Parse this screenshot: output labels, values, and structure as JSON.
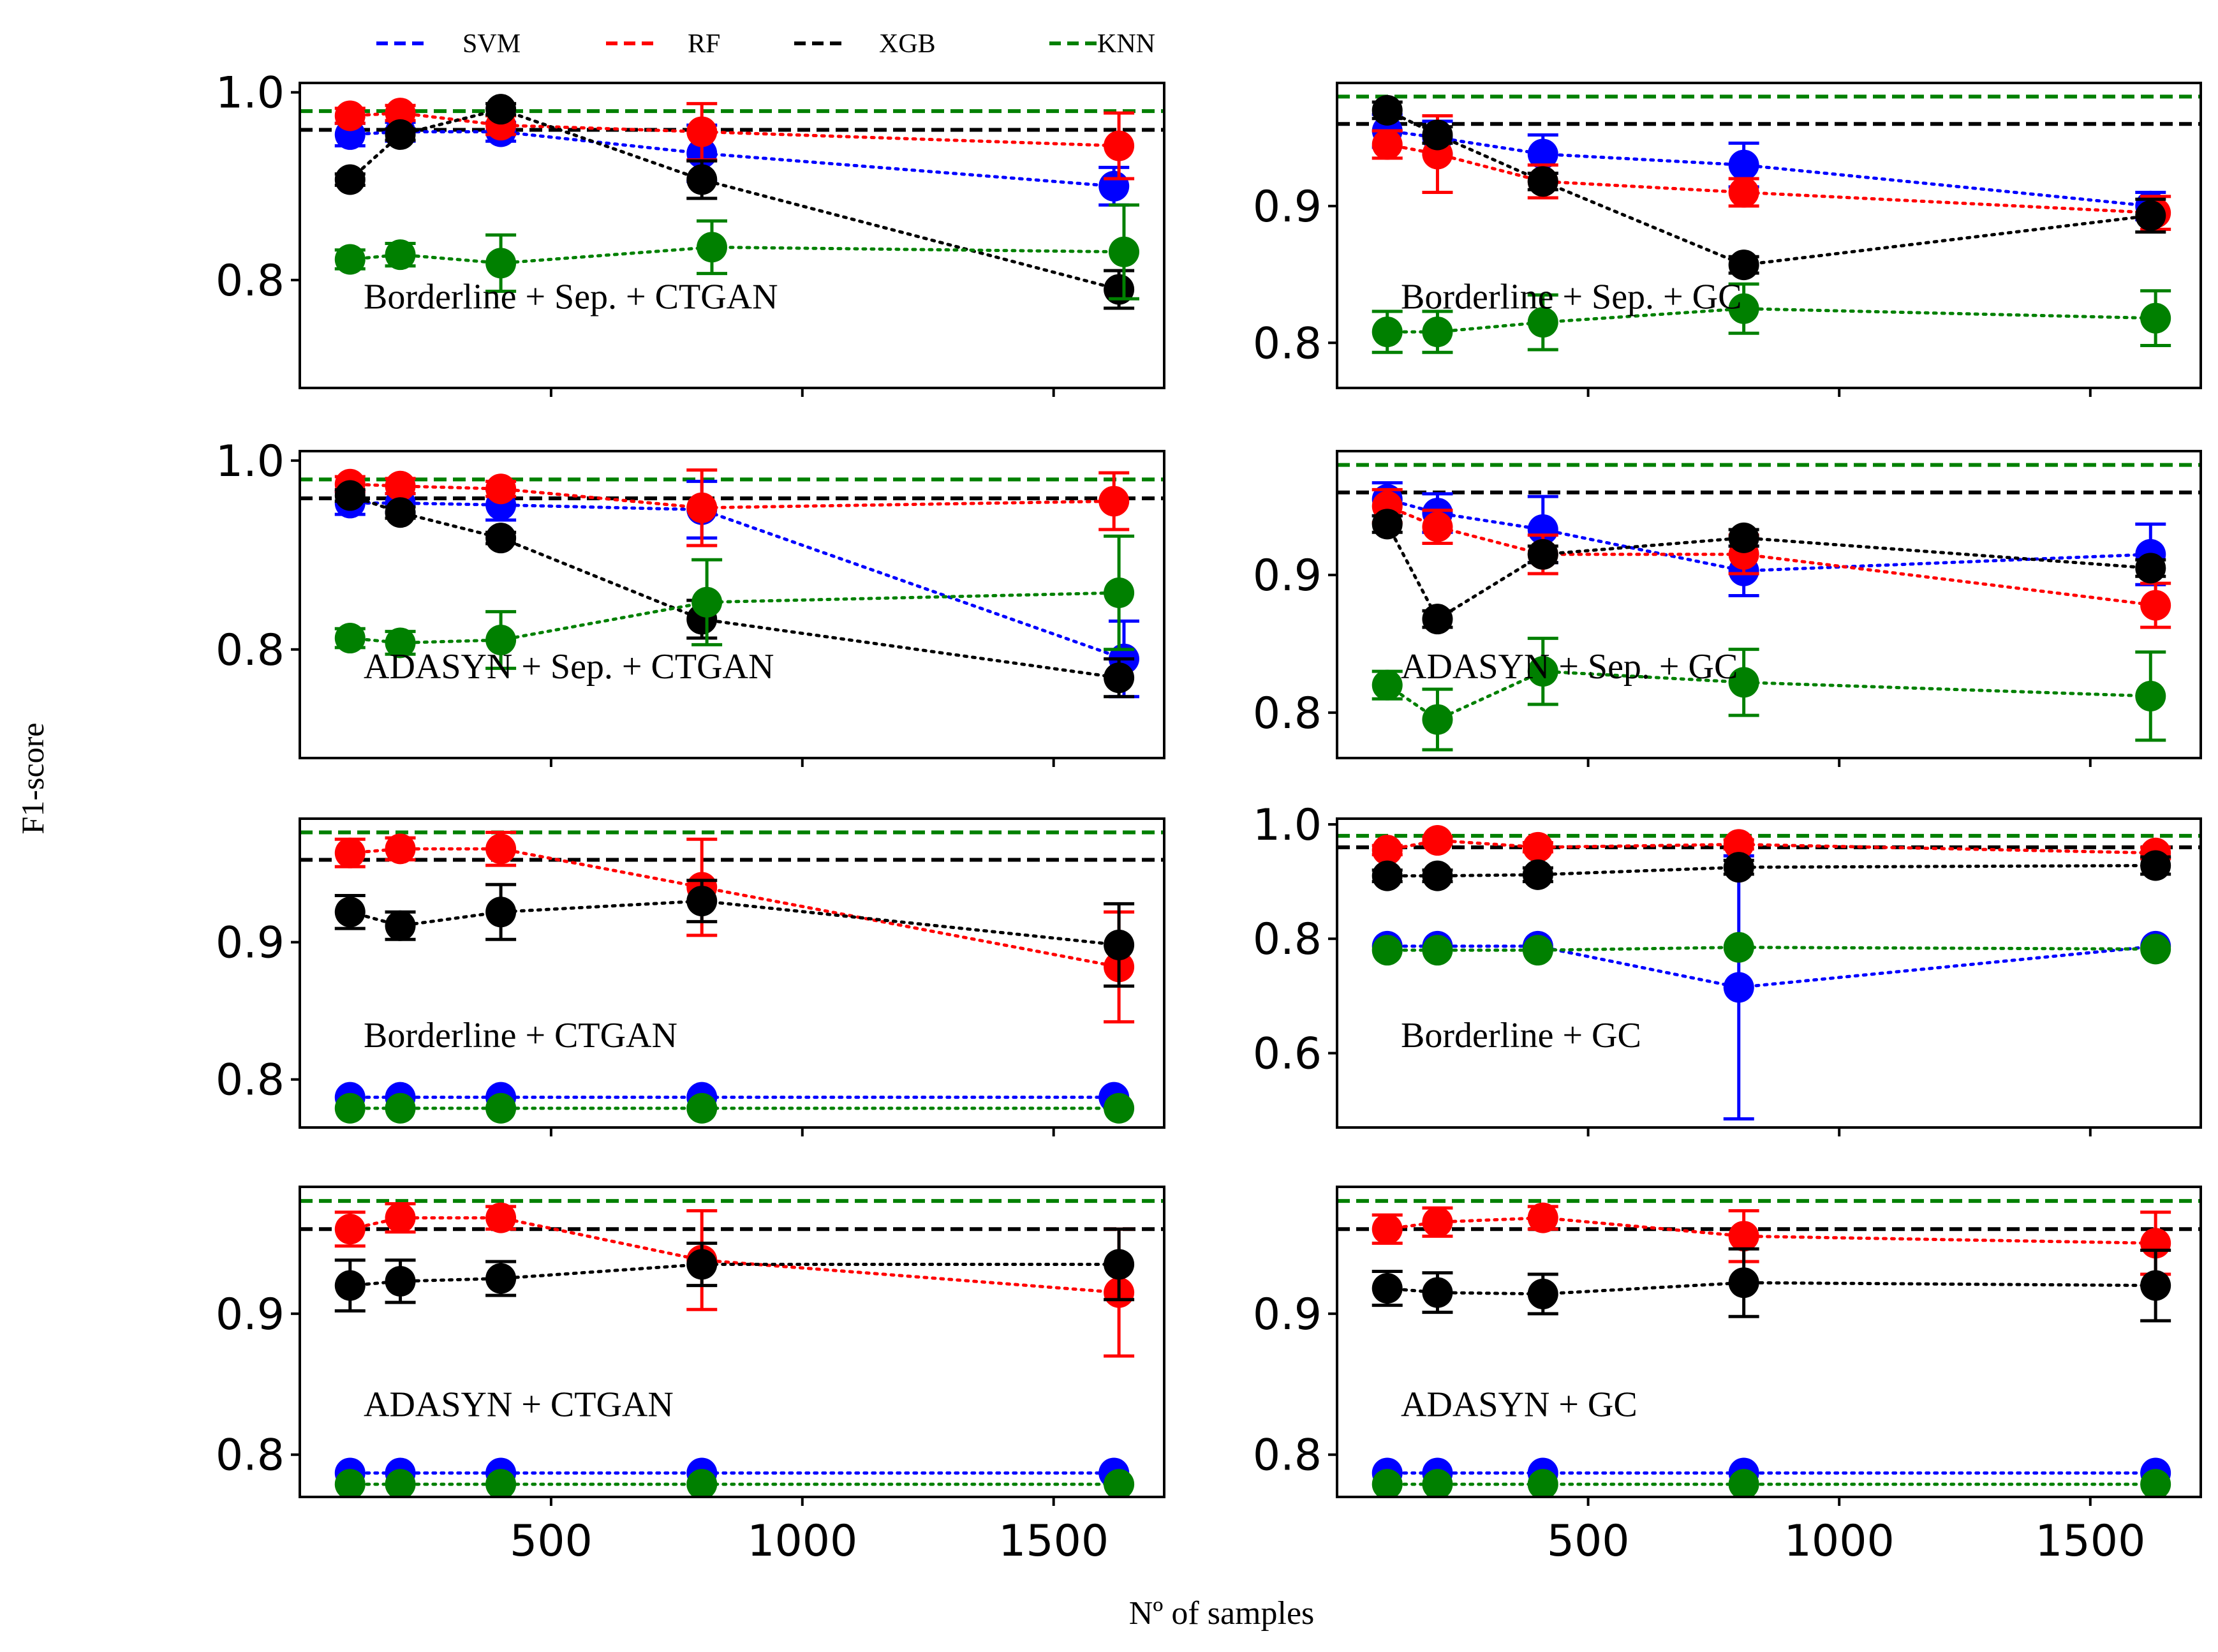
{
  "figure": {
    "ylabel": "F1-score",
    "xlabel": "Nº of samples",
    "legend": {
      "placement": "top",
      "entries": [
        {
          "name": "SVM",
          "color": "#0000ff"
        },
        {
          "name": "RF",
          "color": "#ff0000"
        },
        {
          "name": "XGB",
          "color": "#000000"
        },
        {
          "name": "KNN",
          "color": "#008000"
        }
      ]
    },
    "reference_lines_note": "dashed horizontal lines = baseline F1 per model"
  },
  "chart_data": [
    {
      "type": "scatter",
      "title": "Borderline + Sep. + CTGAN",
      "xlim": [
        0,
        1720
      ],
      "ylim": [
        0.685,
        1.01
      ],
      "yticks": [
        "0.8",
        "1.0"
      ],
      "ytick_values": [
        0.8,
        1.0
      ],
      "xticks": [
        "500",
        "1000",
        "1500"
      ],
      "xtick_values": [
        500,
        1000,
        1500
      ],
      "show_xticklabels": false,
      "baselines": {
        "SVM": 0.96,
        "RF": 0.96,
        "XGB": 0.96,
        "KNN": 0.98
      },
      "series": [
        {
          "name": "SVM",
          "x": [
            100,
            200,
            400,
            800,
            1620
          ],
          "y": [
            0.955,
            0.958,
            0.958,
            0.935,
            0.9
          ],
          "err": [
            0.012,
            0.01,
            0.01,
            0.03,
            0.02
          ]
        },
        {
          "name": "RF",
          "x": [
            100,
            200,
            400,
            800,
            1630
          ],
          "y": [
            0.975,
            0.978,
            0.965,
            0.958,
            0.943
          ],
          "err": [
            0.008,
            0.008,
            0.01,
            0.03,
            0.035
          ]
        },
        {
          "name": "XGB",
          "x": [
            100,
            200,
            400,
            800,
            1630
          ],
          "y": [
            0.907,
            0.955,
            0.982,
            0.907,
            0.79
          ],
          "err": [
            0.006,
            0.006,
            0.006,
            0.02,
            0.02
          ]
        },
        {
          "name": "KNN",
          "x": [
            100,
            200,
            400,
            820,
            1640
          ],
          "y": [
            0.822,
            0.827,
            0.818,
            0.835,
            0.83
          ],
          "err": [
            0.01,
            0.012,
            0.03,
            0.028,
            0.05
          ]
        }
      ]
    },
    {
      "type": "scatter",
      "title": "Borderline + Sep. + GC",
      "xlim": [
        0,
        1720
      ],
      "ylim": [
        0.767,
        0.99
      ],
      "yticks": [
        "0.8",
        "0.9"
      ],
      "ytick_values": [
        0.8,
        0.9
      ],
      "xticks": [
        "500",
        "1000",
        "1500"
      ],
      "xtick_values": [
        500,
        1000,
        1500
      ],
      "show_xticklabels": false,
      "baselines": {
        "SVM": 0.96,
        "RF": 0.96,
        "XGB": 0.96,
        "KNN": 0.98
      },
      "series": [
        {
          "name": "SVM",
          "x": [
            100,
            200,
            410,
            810,
            1620
          ],
          "y": [
            0.955,
            0.95,
            0.938,
            0.93,
            0.9
          ],
          "err": [
            0.012,
            0.012,
            0.014,
            0.016,
            0.01
          ]
        },
        {
          "name": "RF",
          "x": [
            100,
            200,
            410,
            810,
            1630
          ],
          "y": [
            0.945,
            0.938,
            0.918,
            0.91,
            0.895
          ],
          "err": [
            0.01,
            0.028,
            0.012,
            0.01,
            0.012
          ]
        },
        {
          "name": "XGB",
          "x": [
            100,
            200,
            410,
            810,
            1620
          ],
          "y": [
            0.97,
            0.952,
            0.918,
            0.857,
            0.893
          ],
          "err": [
            0.006,
            0.006,
            0.006,
            0.006,
            0.012
          ]
        },
        {
          "name": "KNN",
          "x": [
            100,
            200,
            410,
            810,
            1630
          ],
          "y": [
            0.808,
            0.808,
            0.815,
            0.825,
            0.818
          ],
          "err": [
            0.015,
            0.015,
            0.02,
            0.018,
            0.02
          ]
        }
      ]
    },
    {
      "type": "scatter",
      "title": "ADASYN + Sep. + CTGAN",
      "xlim": [
        0,
        1720
      ],
      "ylim": [
        0.685,
        1.01
      ],
      "yticks": [
        "0.8",
        "1.0"
      ],
      "ytick_values": [
        0.8,
        1.0
      ],
      "xticks": [
        "500",
        "1000",
        "1500"
      ],
      "xtick_values": [
        500,
        1000,
        1500
      ],
      "show_xticklabels": false,
      "baselines": {
        "SVM": 0.96,
        "RF": 0.96,
        "XGB": 0.96,
        "KNN": 0.98
      },
      "series": [
        {
          "name": "SVM",
          "x": [
            100,
            200,
            400,
            800,
            1640
          ],
          "y": [
            0.955,
            0.955,
            0.953,
            0.948,
            0.79
          ],
          "err": [
            0.012,
            0.01,
            0.016,
            0.03,
            0.04
          ]
        },
        {
          "name": "RF",
          "x": [
            100,
            200,
            400,
            800,
            1620
          ],
          "y": [
            0.975,
            0.973,
            0.97,
            0.95,
            0.957
          ],
          "err": [
            0.008,
            0.008,
            0.008,
            0.04,
            0.03
          ]
        },
        {
          "name": "XGB",
          "x": [
            100,
            200,
            400,
            800,
            1630
          ],
          "y": [
            0.963,
            0.945,
            0.918,
            0.832,
            0.77
          ],
          "err": [
            0.006,
            0.006,
            0.006,
            0.02,
            0.02
          ]
        },
        {
          "name": "KNN",
          "x": [
            100,
            200,
            400,
            810,
            1630
          ],
          "y": [
            0.812,
            0.807,
            0.81,
            0.85,
            0.86
          ],
          "err": [
            0.01,
            0.012,
            0.03,
            0.045,
            0.06
          ]
        }
      ]
    },
    {
      "type": "scatter",
      "title": "ADASYN + Sep. + GC",
      "xlim": [
        0,
        1720
      ],
      "ylim": [
        0.767,
        0.99
      ],
      "yticks": [
        "0.8",
        "0.9"
      ],
      "ytick_values": [
        0.8,
        0.9
      ],
      "xticks": [
        "500",
        "1000",
        "1500"
      ],
      "xtick_values": [
        500,
        1000,
        1500
      ],
      "show_xticklabels": false,
      "baselines": {
        "SVM": 0.96,
        "RF": 0.96,
        "XGB": 0.96,
        "KNN": 0.98
      },
      "series": [
        {
          "name": "SVM",
          "x": [
            100,
            200,
            410,
            810,
            1620
          ],
          "y": [
            0.955,
            0.945,
            0.933,
            0.903,
            0.915
          ],
          "err": [
            0.012,
            0.014,
            0.024,
            0.018,
            0.022
          ]
        },
        {
          "name": "RF",
          "x": [
            100,
            200,
            410,
            810,
            1630
          ],
          "y": [
            0.95,
            0.935,
            0.915,
            0.915,
            0.878
          ],
          "err": [
            0.012,
            0.012,
            0.014,
            0.014,
            0.016
          ]
        },
        {
          "name": "XGB",
          "x": [
            100,
            200,
            410,
            810,
            1620
          ],
          "y": [
            0.937,
            0.868,
            0.915,
            0.927,
            0.905
          ],
          "err": [
            0.006,
            0.006,
            0.006,
            0.006,
            0.006
          ]
        },
        {
          "name": "KNN",
          "x": [
            100,
            200,
            410,
            810,
            1620
          ],
          "y": [
            0.82,
            0.795,
            0.83,
            0.822,
            0.812
          ],
          "err": [
            0.01,
            0.022,
            0.024,
            0.024,
            0.032
          ]
        }
      ]
    },
    {
      "type": "scatter",
      "title": "Borderline + CTGAN",
      "xlim": [
        0,
        1720
      ],
      "ylim": [
        0.765,
        0.99
      ],
      "yticks": [
        "0.8",
        "0.9"
      ],
      "ytick_values": [
        0.8,
        0.9
      ],
      "xticks": [
        "500",
        "1000",
        "1500"
      ],
      "xtick_values": [
        500,
        1000,
        1500
      ],
      "show_xticklabels": false,
      "baselines": {
        "SVM": 0.96,
        "RF": 0.96,
        "XGB": 0.96,
        "KNN": 0.98
      },
      "series": [
        {
          "name": "SVM",
          "x": [
            100,
            200,
            400,
            800,
            1620
          ],
          "y": [
            0.787,
            0.787,
            0.787,
            0.787,
            0.787
          ],
          "err": [
            0.002,
            0.002,
            0.002,
            0.002,
            0.002
          ]
        },
        {
          "name": "RF",
          "x": [
            100,
            200,
            400,
            800,
            1630
          ],
          "y": [
            0.965,
            0.968,
            0.968,
            0.94,
            0.882
          ],
          "err": [
            0.01,
            0.008,
            0.012,
            0.035,
            0.04
          ]
        },
        {
          "name": "XGB",
          "x": [
            100,
            200,
            400,
            800,
            1630
          ],
          "y": [
            0.922,
            0.912,
            0.922,
            0.93,
            0.898
          ],
          "err": [
            0.012,
            0.01,
            0.02,
            0.015,
            0.03
          ]
        },
        {
          "name": "KNN",
          "x": [
            100,
            200,
            400,
            800,
            1630
          ],
          "y": [
            0.779,
            0.779,
            0.779,
            0.779,
            0.779
          ],
          "err": [
            0.002,
            0.002,
            0.002,
            0.002,
            0.002
          ]
        }
      ]
    },
    {
      "type": "scatter",
      "title": "Borderline + GC",
      "xlim": [
        0,
        1720
      ],
      "ylim": [
        0.47,
        1.01
      ],
      "yticks": [
        "0.6",
        "0.8",
        "1.0"
      ],
      "ytick_values": [
        0.6,
        0.8,
        1.0
      ],
      "xticks": [
        "500",
        "1000",
        "1500"
      ],
      "xtick_values": [
        500,
        1000,
        1500
      ],
      "show_xticklabels": false,
      "baselines": {
        "SVM": 0.96,
        "RF": 0.96,
        "XGB": 0.96,
        "KNN": 0.98
      },
      "series": [
        {
          "name": "SVM",
          "x": [
            100,
            200,
            400,
            800,
            1630
          ],
          "y": [
            0.787,
            0.787,
            0.787,
            0.715,
            0.787
          ],
          "err": [
            0.003,
            0.003,
            0.003,
            0.23,
            0.003
          ]
        },
        {
          "name": "RF",
          "x": [
            100,
            200,
            400,
            800,
            1630
          ],
          "y": [
            0.955,
            0.972,
            0.96,
            0.965,
            0.95
          ],
          "err": [
            0.008,
            0.006,
            0.008,
            0.008,
            0.01
          ]
        },
        {
          "name": "XGB",
          "x": [
            100,
            200,
            400,
            800,
            1630
          ],
          "y": [
            0.91,
            0.91,
            0.912,
            0.925,
            0.928
          ],
          "err": [
            0.01,
            0.01,
            0.012,
            0.012,
            0.015
          ]
        },
        {
          "name": "KNN",
          "x": [
            100,
            200,
            400,
            800,
            1630
          ],
          "y": [
            0.78,
            0.78,
            0.78,
            0.785,
            0.782
          ],
          "err": [
            0.003,
            0.003,
            0.003,
            0.003,
            0.003
          ]
        }
      ]
    },
    {
      "type": "scatter",
      "title": "ADASYN + CTGAN",
      "xlim": [
        0,
        1720
      ],
      "ylim": [
        0.77,
        0.99
      ],
      "yticks": [
        "0.8",
        "0.9"
      ],
      "ytick_values": [
        0.8,
        0.9
      ],
      "xticks": [
        "500",
        "1000",
        "1500"
      ],
      "xtick_values": [
        500,
        1000,
        1500
      ],
      "show_xticklabels": true,
      "baselines": {
        "SVM": 0.96,
        "RF": 0.96,
        "XGB": 0.96,
        "KNN": 0.98
      },
      "series": [
        {
          "name": "SVM",
          "x": [
            100,
            200,
            400,
            800,
            1620
          ],
          "y": [
            0.787,
            0.787,
            0.787,
            0.787,
            0.787
          ],
          "err": [
            0.002,
            0.002,
            0.002,
            0.002,
            0.002
          ]
        },
        {
          "name": "RF",
          "x": [
            100,
            200,
            400,
            800,
            1630
          ],
          "y": [
            0.96,
            0.968,
            0.968,
            0.938,
            0.915
          ],
          "err": [
            0.012,
            0.01,
            0.008,
            0.035,
            0.045
          ]
        },
        {
          "name": "XGB",
          "x": [
            100,
            200,
            400,
            800,
            1630
          ],
          "y": [
            0.92,
            0.923,
            0.925,
            0.935,
            0.935
          ],
          "err": [
            0.018,
            0.015,
            0.012,
            0.015,
            0.025
          ]
        },
        {
          "name": "KNN",
          "x": [
            100,
            200,
            400,
            800,
            1630
          ],
          "y": [
            0.779,
            0.779,
            0.779,
            0.779,
            0.779
          ],
          "err": [
            0.002,
            0.002,
            0.002,
            0.002,
            0.002
          ]
        }
      ]
    },
    {
      "type": "scatter",
      "title": "ADASYN + GC",
      "xlim": [
        0,
        1720
      ],
      "ylim": [
        0.77,
        0.99
      ],
      "yticks": [
        "0.8",
        "0.9"
      ],
      "ytick_values": [
        0.8,
        0.9
      ],
      "xticks": [
        "500",
        "1000",
        "1500"
      ],
      "xtick_values": [
        500,
        1000,
        1500
      ],
      "show_xticklabels": true,
      "baselines": {
        "SVM": 0.96,
        "RF": 0.96,
        "XGB": 0.96,
        "KNN": 0.98
      },
      "series": [
        {
          "name": "SVM",
          "x": [
            100,
            200,
            410,
            810,
            1630
          ],
          "y": [
            0.787,
            0.787,
            0.787,
            0.787,
            0.787
          ],
          "err": [
            0.002,
            0.002,
            0.002,
            0.002,
            0.002
          ]
        },
        {
          "name": "RF",
          "x": [
            100,
            200,
            410,
            810,
            1630
          ],
          "y": [
            0.96,
            0.965,
            0.968,
            0.955,
            0.95
          ],
          "err": [
            0.01,
            0.01,
            0.008,
            0.018,
            0.022
          ]
        },
        {
          "name": "XGB",
          "x": [
            100,
            200,
            410,
            810,
            1630
          ],
          "y": [
            0.918,
            0.915,
            0.914,
            0.922,
            0.92
          ],
          "err": [
            0.012,
            0.014,
            0.014,
            0.024,
            0.025
          ]
        },
        {
          "name": "KNN",
          "x": [
            100,
            200,
            410,
            810,
            1630
          ],
          "y": [
            0.779,
            0.779,
            0.779,
            0.779,
            0.779
          ],
          "err": [
            0.002,
            0.002,
            0.002,
            0.002,
            0.002
          ]
        }
      ]
    }
  ]
}
